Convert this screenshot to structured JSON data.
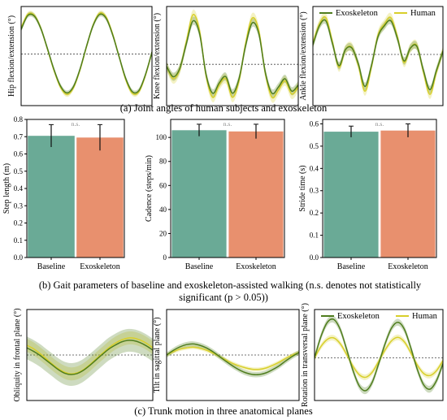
{
  "colors": {
    "exoskeleton": "#4f7d1e",
    "human": "#d8cf2a",
    "bar_baseline": "#6aaa96",
    "bar_exoskeleton": "#e8906e",
    "error_bar": "#111111"
  },
  "captions": {
    "a": "(a) Joint angles of human subjects and exoskeleton",
    "b_line1": "(b) Gait parameters of baseline and exoskeleton-assisted walking (n.s. denotes not statistically",
    "b_line2": "significant (p > 0.05))",
    "c": "(c) Trunk motion in three anatomical planes"
  },
  "legend": {
    "exoskeleton": "Exoskeleton",
    "human": "Human"
  },
  "chart_data": [
    {
      "type": "line",
      "panel": "a1",
      "ylabel": "Hip flexion/extension (°)",
      "x": [
        0,
        0.05,
        0.1,
        0.15,
        0.2,
        0.25,
        0.3,
        0.35,
        0.4,
        0.45,
        0.5,
        0.55,
        0.6,
        0.65,
        0.7,
        0.75,
        0.8,
        0.85,
        0.9,
        0.95,
        1.0
      ],
      "ylim": [
        -1.3,
        1.2
      ],
      "series": [
        {
          "name": "Exoskeleton",
          "values": [
            0.62,
            0.97,
            0.96,
            0.65,
            0.15,
            -0.38,
            -0.8,
            -0.98,
            -0.82,
            -0.38,
            0.2,
            0.72,
            1.0,
            0.9,
            0.48,
            -0.08,
            -0.62,
            -0.95,
            -0.92,
            -0.52,
            0.05
          ],
          "band": 0.06
        },
        {
          "name": "Human",
          "values": [
            0.66,
            1.0,
            0.98,
            0.66,
            0.14,
            -0.4,
            -0.83,
            -1.02,
            -0.85,
            -0.4,
            0.19,
            0.73,
            1.03,
            0.93,
            0.5,
            -0.08,
            -0.65,
            -0.99,
            -0.95,
            -0.54,
            0.05
          ],
          "band": 0.06
        }
      ],
      "zero_line": true
    },
    {
      "type": "line",
      "panel": "a2",
      "ylabel": "Knee flexion/extension (°)",
      "x": [
        0,
        0.05,
        0.1,
        0.15,
        0.2,
        0.25,
        0.3,
        0.35,
        0.4,
        0.45,
        0.5,
        0.55,
        0.6,
        0.65,
        0.7,
        0.75,
        0.8,
        0.85,
        0.9,
        0.95,
        1.0
      ],
      "ylim": [
        -1.0,
        1.4
      ],
      "series": [
        {
          "name": "Exoskeleton",
          "values": [
            -0.05,
            -0.3,
            -0.1,
            0.5,
            1.05,
            0.75,
            -0.25,
            -0.7,
            -0.45,
            -0.3,
            -0.7,
            -0.35,
            0.45,
            1.0,
            0.75,
            -0.2,
            -0.7,
            -0.55,
            -0.35,
            -0.65,
            -0.5
          ],
          "band": 0.1
        },
        {
          "name": "Human",
          "values": [
            -0.05,
            -0.35,
            -0.12,
            0.55,
            1.2,
            0.82,
            -0.28,
            -0.8,
            -0.5,
            -0.35,
            -0.8,
            -0.4,
            0.5,
            1.12,
            0.82,
            -0.22,
            -0.8,
            -0.62,
            -0.4,
            -0.72,
            -0.55
          ],
          "band": 0.12
        }
      ],
      "zero_line": true
    },
    {
      "type": "line",
      "panel": "a3",
      "ylabel": "Ankle flexion/extension (°)",
      "x": [
        0,
        0.05,
        0.1,
        0.15,
        0.2,
        0.25,
        0.3,
        0.35,
        0.4,
        0.45,
        0.5,
        0.55,
        0.6,
        0.65,
        0.7,
        0.75,
        0.8,
        0.85,
        0.9,
        0.95,
        1.0
      ],
      "ylim": [
        -1.6,
        1.5
      ],
      "series": [
        {
          "name": "Exoskeleton",
          "values": [
            0.3,
            0.9,
            1.05,
            0.35,
            -0.35,
            0.15,
            0.2,
            -0.3,
            -1.0,
            -0.35,
            0.55,
            0.9,
            1.05,
            0.5,
            -0.2,
            0.2,
            0.25,
            -0.5,
            -1.1,
            -0.5,
            0.1
          ],
          "band": 0.12
        },
        {
          "name": "Human",
          "values": [
            0.35,
            0.95,
            1.15,
            0.4,
            -0.4,
            0.15,
            0.22,
            -0.35,
            -1.15,
            -0.4,
            0.6,
            0.95,
            1.15,
            0.55,
            -0.25,
            0.2,
            0.27,
            -0.55,
            -1.25,
            -0.55,
            0.12
          ],
          "band": 0.14
        }
      ],
      "zero_line": true,
      "legend": "top-right"
    },
    {
      "type": "bar",
      "panel": "b1",
      "ylabel": "Step length (m)",
      "categories": [
        "Baseline",
        "Exoskeleton"
      ],
      "values": [
        0.705,
        0.695
      ],
      "errors": [
        0.065,
        0.075
      ],
      "ylim": [
        0,
        0.8
      ],
      "yticks": [
        0.0,
        0.1,
        0.2,
        0.3,
        0.4,
        0.5,
        0.6,
        0.7,
        0.8
      ],
      "ytick_labels": [
        "0.0",
        "0.1",
        "0.2",
        "0.3",
        "0.4",
        "0.5",
        "0.6",
        "0.7",
        "0.8"
      ],
      "annotation": "n.s."
    },
    {
      "type": "bar",
      "panel": "b2",
      "ylabel": "Cadence (steps/min)",
      "categories": [
        "Baseline",
        "Exoskeleton"
      ],
      "values": [
        106,
        105
      ],
      "errors": [
        5,
        6
      ],
      "ylim": [
        0,
        115
      ],
      "yticks": [
        0,
        20,
        40,
        60,
        80,
        100
      ],
      "ytick_labels": [
        "0",
        "20",
        "40",
        "60",
        "80",
        "100"
      ],
      "annotation": "n.s."
    },
    {
      "type": "bar",
      "panel": "b3",
      "ylabel": "Stride time (s)",
      "categories": [
        "Baseline",
        "Exoskeleton"
      ],
      "values": [
        0.565,
        0.57
      ],
      "errors": [
        0.025,
        0.03
      ],
      "ylim": [
        0,
        0.62
      ],
      "yticks": [
        0.0,
        0.1,
        0.2,
        0.3,
        0.4,
        0.5,
        0.6
      ],
      "ytick_labels": [
        "0.0",
        "0.1",
        "0.2",
        "0.3",
        "0.4",
        "0.5",
        "0.6"
      ],
      "annotation": "n.s."
    },
    {
      "type": "line",
      "panel": "c1",
      "ylabel": "Obliquity in frontal plane (°)",
      "x": [
        0,
        0.05,
        0.1,
        0.15,
        0.2,
        0.25,
        0.3,
        0.35,
        0.4,
        0.45,
        0.5,
        0.55,
        0.6,
        0.65,
        0.7,
        0.75,
        0.8,
        0.85,
        0.9,
        0.95,
        1.0
      ],
      "ylim": [
        -1.4,
        1.4
      ],
      "series": [
        {
          "name": "Exoskeleton",
          "values": [
            0.22,
            0.12,
            0.0,
            -0.15,
            -0.3,
            -0.45,
            -0.56,
            -0.6,
            -0.57,
            -0.47,
            -0.32,
            -0.15,
            0.02,
            0.18,
            0.3,
            0.4,
            0.45,
            0.44,
            0.38,
            0.28,
            0.15
          ],
          "band": 0.35
        },
        {
          "name": "Human",
          "values": [
            0.3,
            0.2,
            0.06,
            -0.1,
            -0.27,
            -0.42,
            -0.53,
            -0.58,
            -0.55,
            -0.45,
            -0.3,
            -0.12,
            0.05,
            0.22,
            0.36,
            0.46,
            0.52,
            0.52,
            0.46,
            0.36,
            0.22
          ],
          "band": 0.2
        }
      ],
      "zero_line": true
    },
    {
      "type": "line",
      "panel": "c2",
      "ylabel": "Tilt in sagittal plane (°)",
      "x": [
        0,
        0.05,
        0.1,
        0.15,
        0.2,
        0.25,
        0.3,
        0.35,
        0.4,
        0.45,
        0.5,
        0.55,
        0.6,
        0.65,
        0.7,
        0.75,
        0.8,
        0.85,
        0.9,
        0.95,
        1.0
      ],
      "ylim": [
        -1.4,
        1.4
      ],
      "series": [
        {
          "name": "Exoskeleton",
          "values": [
            0.0,
            0.14,
            0.25,
            0.32,
            0.34,
            0.3,
            0.22,
            0.1,
            -0.05,
            -0.2,
            -0.34,
            -0.46,
            -0.55,
            -0.6,
            -0.6,
            -0.55,
            -0.45,
            -0.33,
            -0.18,
            -0.04,
            0.08
          ],
          "band": 0.08
        },
        {
          "name": "Human",
          "values": [
            0.0,
            0.1,
            0.18,
            0.22,
            0.24,
            0.21,
            0.15,
            0.06,
            -0.05,
            -0.16,
            -0.26,
            -0.34,
            -0.4,
            -0.44,
            -0.44,
            -0.4,
            -0.32,
            -0.22,
            -0.1,
            0.0,
            0.08
          ],
          "band": 0.06
        }
      ],
      "zero_line": true
    },
    {
      "type": "line",
      "panel": "c3",
      "ylabel": "Rotation in transversal plane (°)",
      "x": [
        0,
        0.05,
        0.1,
        0.15,
        0.2,
        0.25,
        0.3,
        0.35,
        0.4,
        0.45,
        0.5,
        0.55,
        0.6,
        0.65,
        0.7,
        0.75,
        0.8,
        0.85,
        0.9,
        0.95,
        1.0
      ],
      "ylim": [
        -1.5,
        1.7
      ],
      "series": [
        {
          "name": "Exoskeleton",
          "values": [
            0.0,
            0.75,
            1.25,
            1.35,
            1.0,
            0.3,
            -0.45,
            -1.0,
            -1.15,
            -0.85,
            -0.2,
            0.5,
            1.05,
            1.25,
            1.0,
            0.35,
            -0.4,
            -0.95,
            -1.1,
            -0.8,
            -0.2
          ],
          "band": 0.12
        },
        {
          "name": "Human",
          "values": [
            0.0,
            0.4,
            0.65,
            0.7,
            0.5,
            0.12,
            -0.3,
            -0.6,
            -0.68,
            -0.5,
            -0.12,
            0.28,
            0.6,
            0.72,
            0.56,
            0.18,
            -0.25,
            -0.55,
            -0.62,
            -0.45,
            -0.1
          ],
          "band": 0.1
        }
      ],
      "zero_line": true,
      "legend": "top-right"
    }
  ]
}
